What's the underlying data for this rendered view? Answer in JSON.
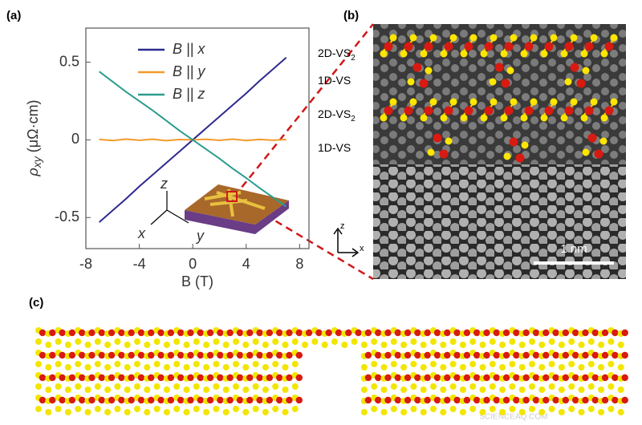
{
  "chart_data": {
    "type": "line",
    "panel_label": "(a)",
    "xlabel": "B (T)",
    "ylabel_parts": [
      "ρ",
      "xy",
      " (μΩ·cm)"
    ],
    "x": [
      -7,
      -6,
      -5,
      -4,
      -3,
      -2,
      -1,
      0,
      1,
      2,
      3,
      4,
      5,
      6,
      7
    ],
    "series": [
      {
        "name": "B || x",
        "color": "#2e2a8f",
        "values": [
          -0.53,
          -0.455,
          -0.38,
          -0.3,
          -0.225,
          -0.15,
          -0.075,
          0,
          0.075,
          0.15,
          0.225,
          0.3,
          0.38,
          0.455,
          0.53
        ]
      },
      {
        "name": "B || y",
        "color": "#f39a2c",
        "values": [
          0.003,
          -0.004,
          0.005,
          -0.002,
          0.004,
          -0.005,
          0.002,
          0,
          0.004,
          -0.003,
          0.005,
          -0.004,
          0.003,
          -0.002,
          0.002
        ]
      },
      {
        "name": "B || z",
        "color": "#2a9d8f",
        "values": [
          0.44,
          0.375,
          0.31,
          0.25,
          0.19,
          0.125,
          0.06,
          0,
          -0.06,
          -0.12,
          -0.185,
          -0.245,
          -0.31,
          -0.37,
          -0.43
        ]
      }
    ],
    "xlim": [
      -8,
      8.7
    ],
    "xticks": [
      -8,
      -4,
      0,
      4,
      8
    ],
    "ylim": [
      -0.7,
      0.72
    ],
    "yticks": [
      -0.5,
      0,
      0.5
    ],
    "legend": "upper left",
    "inset_axes": [
      "z",
      "x",
      "y"
    ]
  },
  "panel_b": {
    "label": "(b)",
    "layers": [
      {
        "text": "2D-VS",
        "subscript": "2"
      },
      {
        "text": "1D-VS"
      },
      {
        "text": "2D-VS",
        "subscript": "2"
      },
      {
        "text": "1D-VS"
      }
    ],
    "axes": [
      "z",
      "x"
    ],
    "scale_bar": "1 nm"
  },
  "panel_c": {
    "label": "(c)"
  },
  "watermark": "SCIENCEAQ.COM"
}
